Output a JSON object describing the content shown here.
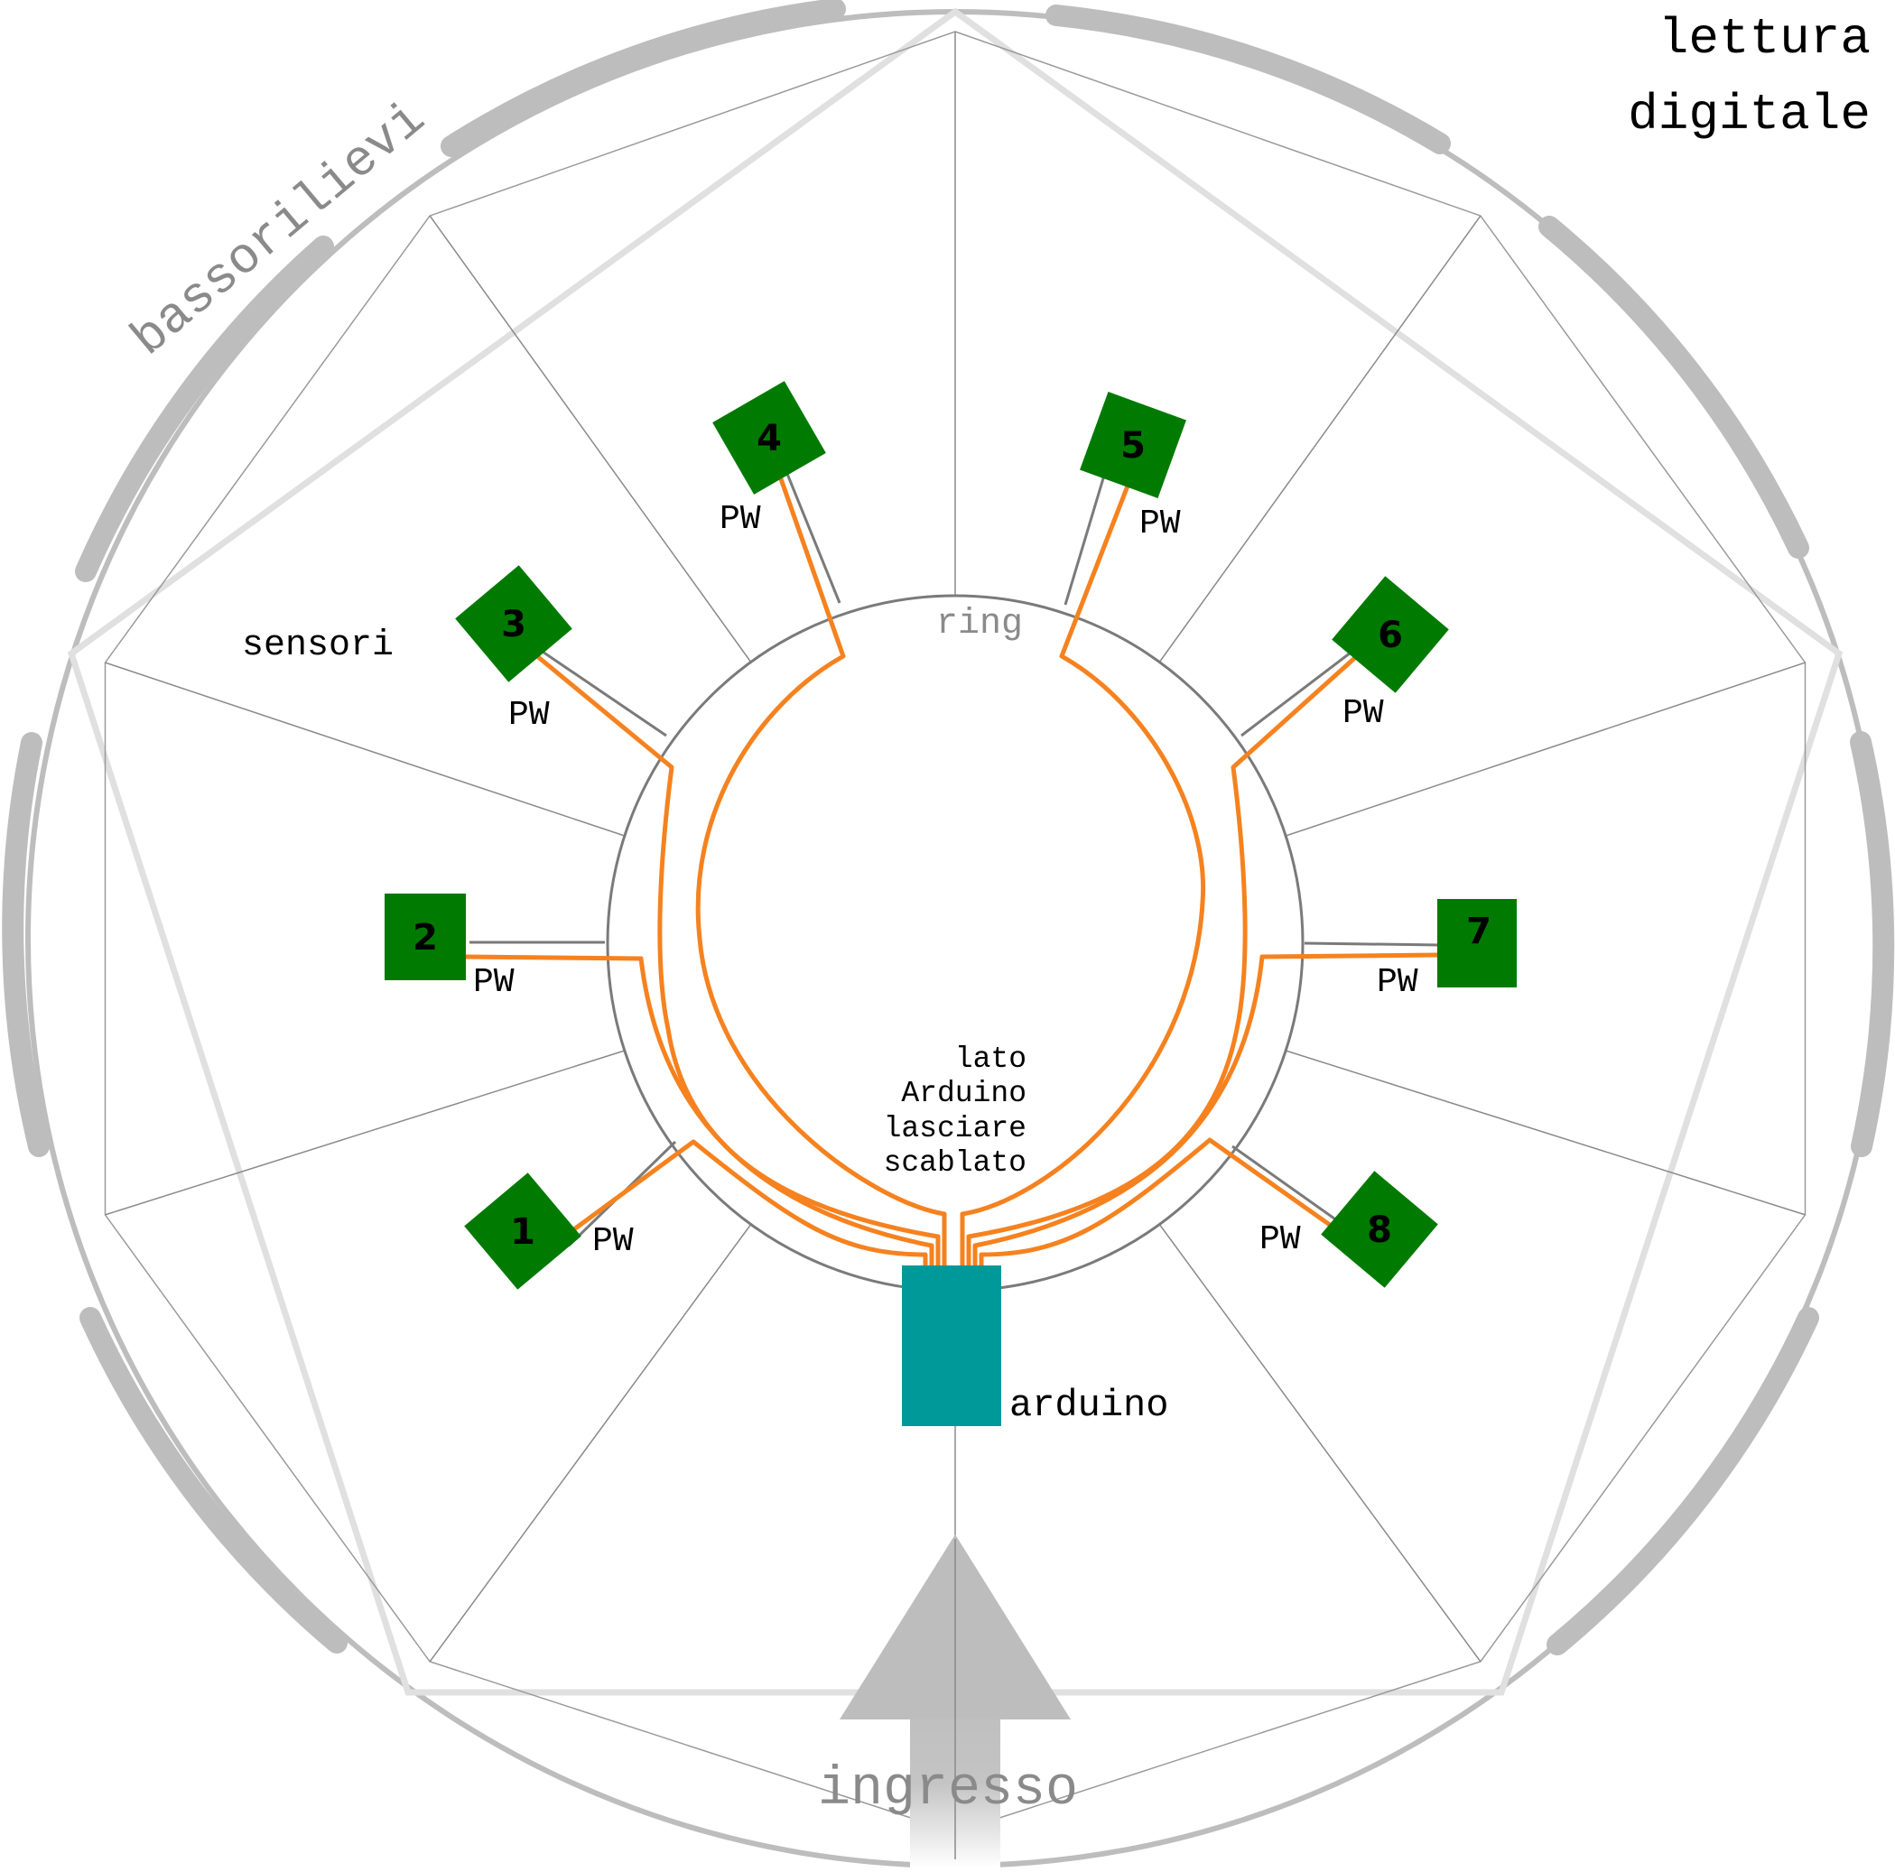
{
  "labels": {
    "title_line1": "lettura",
    "title_line2": "digitale",
    "bassorilievi": "bassorilievi",
    "ring": "ring",
    "sensori": "sensori",
    "arduino": "arduino",
    "ingresso": "ingresso",
    "note_line1": "lato",
    "note_line2": "Arduino",
    "note_line3": "lasciare",
    "note_line4": "scablato",
    "pw": "PW"
  },
  "sensors": [
    {
      "number": "1",
      "pw": "PW"
    },
    {
      "number": "2",
      "pw": "PW"
    },
    {
      "number": "3",
      "pw": "PW"
    },
    {
      "number": "4",
      "pw": "PW"
    },
    {
      "number": "5",
      "pw": "PW"
    },
    {
      "number": "6",
      "pw": "PW"
    },
    {
      "number": "7",
      "pw": "PW"
    },
    {
      "number": "8",
      "pw": "PW"
    }
  ],
  "colors": {
    "outer_ring": "#bdbdbd",
    "pentagon": "#e0e0e0",
    "spokes": "#8a8a8a",
    "inner_ring": "#7a7a7a",
    "wire": "#f5821f",
    "sensor": "#007a00",
    "arduino": "#009999",
    "arrow": "#bdbdbd",
    "grey_text": "#8a8a8a"
  }
}
